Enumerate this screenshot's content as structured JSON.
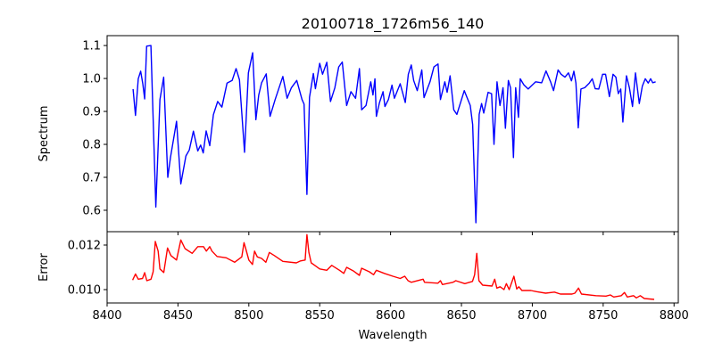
{
  "chart_data": [
    {
      "type": "line",
      "title": "20100718_1726m56_140",
      "xlabel": "",
      "ylabel": "Spectrum",
      "xlim": [
        8400,
        8803
      ],
      "ylim": [
        0.535,
        1.13
      ],
      "xticks": [
        8400,
        8450,
        8500,
        8550,
        8600,
        8650,
        8700,
        8750,
        8800
      ],
      "yticks": [
        0.6,
        0.7,
        0.8,
        0.9,
        1.0,
        1.1
      ],
      "ytick_labels": [
        "0.6",
        "0.7",
        "0.8",
        "0.9",
        "1.0",
        "1.1"
      ],
      "grid": false,
      "color": "#0000ff",
      "series": [
        {
          "name": "Spectrum",
          "points": [
            [
              8418.3,
              0.968
            ],
            [
              8420,
              0.888
            ],
            [
              8422,
              0.999
            ],
            [
              8423.7,
              1.022
            ],
            [
              8425.2,
              0.984
            ],
            [
              8426.5,
              0.938
            ],
            [
              8427.9,
              1.098
            ],
            [
              8430.9,
              1.1
            ],
            [
              8434.4,
              0.61
            ],
            [
              8437.3,
              0.936
            ],
            [
              8439.9,
              1.004
            ],
            [
              8442.8,
              0.7
            ],
            [
              8444.7,
              0.76
            ],
            [
              8449,
              0.87
            ],
            [
              8452,
              0.68
            ],
            [
              8455.6,
              0.765
            ],
            [
              8458,
              0.783
            ],
            [
              8460.9,
              0.84
            ],
            [
              8464,
              0.78
            ],
            [
              8466,
              0.798
            ],
            [
              8467.8,
              0.774
            ],
            [
              8469.9,
              0.841
            ],
            [
              8472.4,
              0.796
            ],
            [
              8475,
              0.89
            ],
            [
              8478,
              0.93
            ],
            [
              8481,
              0.913
            ],
            [
              8484.6,
              0.986
            ],
            [
              8488.2,
              0.994
            ],
            [
              8491,
              1.03
            ],
            [
              8493.4,
              0.996
            ],
            [
              8497,
              0.776
            ],
            [
              8499.7,
              1.017
            ],
            [
              8502.7,
              1.078
            ],
            [
              8505,
              0.875
            ],
            [
              8507,
              0.95
            ],
            [
              8509,
              0.987
            ],
            [
              8512.3,
              1.014
            ],
            [
              8515,
              0.885
            ],
            [
              8518.6,
              0.936
            ],
            [
              8524,
              1.006
            ],
            [
              8527,
              0.94
            ],
            [
              8530,
              0.972
            ],
            [
              8533.8,
              0.994
            ],
            [
              8537.5,
              0.936
            ],
            [
              8539,
              0.922
            ],
            [
              8541,
              0.648
            ],
            [
              8542.8,
              0.943
            ],
            [
              8545.5,
              1.015
            ],
            [
              8547,
              0.969
            ],
            [
              8550,
              1.046
            ],
            [
              8552,
              1.013
            ],
            [
              8555,
              1.049
            ],
            [
              8557.6,
              0.93
            ],
            [
              8560.7,
              0.972
            ],
            [
              8563.4,
              1.035
            ],
            [
              8565.9,
              1.05
            ],
            [
              8569,
              0.918
            ],
            [
              8572,
              0.96
            ],
            [
              8575.3,
              0.94
            ],
            [
              8578,
              1.03
            ],
            [
              8579.6,
              0.905
            ],
            [
              8582.7,
              0.918
            ],
            [
              8586,
              0.99
            ],
            [
              8587.6,
              0.95
            ],
            [
              8589,
              0.999
            ],
            [
              8590,
              0.885
            ],
            [
              8592.2,
              0.927
            ],
            [
              8594.7,
              0.96
            ],
            [
              8596,
              0.915
            ],
            [
              8598.5,
              0.936
            ],
            [
              8601,
              0.98
            ],
            [
              8602.7,
              0.94
            ],
            [
              8606.8,
              0.984
            ],
            [
              8610.4,
              0.927
            ],
            [
              8612.5,
              1.013
            ],
            [
              8614.6,
              1.041
            ],
            [
              8616.3,
              0.994
            ],
            [
              8618.8,
              0.963
            ],
            [
              8622,
              1.026
            ],
            [
              8623.6,
              0.942
            ],
            [
              8627.8,
              0.99
            ],
            [
              8630.6,
              1.035
            ],
            [
              8633.5,
              1.044
            ],
            [
              8635.2,
              0.936
            ],
            [
              8638.3,
              0.99
            ],
            [
              8639.9,
              0.958
            ],
            [
              8642,
              1.008
            ],
            [
              8644.6,
              0.905
            ],
            [
              8646.8,
              0.891
            ],
            [
              8652,
              0.963
            ],
            [
              8656.2,
              0.918
            ],
            [
              8657.9,
              0.86
            ],
            [
              8660.2,
              0.562
            ],
            [
              8662.5,
              0.891
            ],
            [
              8664.2,
              0.924
            ],
            [
              8665.7,
              0.895
            ],
            [
              8668.8,
              0.958
            ],
            [
              8671.3,
              0.954
            ],
            [
              8673,
              0.8
            ],
            [
              8675.1,
              0.99
            ],
            [
              8677.2,
              0.918
            ],
            [
              8679.3,
              0.972
            ],
            [
              8681,
              0.849
            ],
            [
              8683.1,
              0.994
            ],
            [
              8684.6,
              0.972
            ],
            [
              8686.7,
              0.76
            ],
            [
              8688.3,
              0.972
            ],
            [
              8690.2,
              0.882
            ],
            [
              8691.5,
              0.999
            ],
            [
              8694,
              0.981
            ],
            [
              8697.1,
              0.968
            ],
            [
              8702.4,
              0.99
            ],
            [
              8706.6,
              0.987
            ],
            [
              8709.7,
              1.023
            ],
            [
              8712.9,
              0.99
            ],
            [
              8715,
              0.963
            ],
            [
              8718.2,
              1.026
            ],
            [
              8720.3,
              1.013
            ],
            [
              8723,
              1.004
            ],
            [
              8725.5,
              1.017
            ],
            [
              8727.6,
              0.993
            ],
            [
              8729.3,
              1.022
            ],
            [
              8730.8,
              0.986
            ],
            [
              8732.4,
              0.85
            ],
            [
              8734.3,
              0.968
            ],
            [
              8737,
              0.972
            ],
            [
              8740.2,
              0.986
            ],
            [
              8742.3,
              0.999
            ],
            [
              8744.4,
              0.969
            ],
            [
              8746.9,
              0.968
            ],
            [
              8749.6,
              1.013
            ],
            [
              8751.7,
              1.013
            ],
            [
              8754.4,
              0.945
            ],
            [
              8757,
              1.013
            ],
            [
              8759,
              1.004
            ],
            [
              8760.7,
              0.954
            ],
            [
              8762.4,
              0.968
            ],
            [
              8763.9,
              0.868
            ],
            [
              8766.4,
              1.008
            ],
            [
              8768.5,
              0.972
            ],
            [
              8770.7,
              0.915
            ],
            [
              8772.8,
              1.017
            ],
            [
              8775.5,
              0.924
            ],
            [
              8777.6,
              0.977
            ],
            [
              8779.7,
              0.999
            ],
            [
              8781.8,
              0.986
            ],
            [
              8783.5,
              0.999
            ],
            [
              8785,
              0.987
            ],
            [
              8787,
              0.99
            ]
          ]
        }
      ]
    },
    {
      "type": "line",
      "title": "",
      "xlabel": "Wavelength",
      "ylabel": "Error",
      "xlim": [
        8400,
        8803
      ],
      "ylim": [
        0.0094,
        0.0126
      ],
      "xticks": [
        8400,
        8450,
        8500,
        8550,
        8600,
        8650,
        8700,
        8750,
        8800
      ],
      "xtick_labels": [
        "8400",
        "8450",
        "8500",
        "8550",
        "8600",
        "8650",
        "8700",
        "8750",
        "8800"
      ],
      "yticks": [
        0.01,
        0.012
      ],
      "ytick_labels": [
        "0.010",
        "0.012"
      ],
      "grid": false,
      "color": "#ff0000",
      "series": [
        {
          "name": "Error",
          "points": [
            [
              8418,
              0.01043
            ],
            [
              8420,
              0.0107
            ],
            [
              8422,
              0.01047
            ],
            [
              8425,
              0.0105
            ],
            [
              8426.5,
              0.01076
            ],
            [
              8428,
              0.0104
            ],
            [
              8431,
              0.01047
            ],
            [
              8432.5,
              0.0108
            ],
            [
              8434,
              0.01216
            ],
            [
              8436,
              0.01173
            ],
            [
              8437.3,
              0.01093
            ],
            [
              8440,
              0.01077
            ],
            [
              8442.6,
              0.01187
            ],
            [
              8445,
              0.01153
            ],
            [
              8449,
              0.01133
            ],
            [
              8452,
              0.01223
            ],
            [
              8455,
              0.01184
            ],
            [
              8460,
              0.01163
            ],
            [
              8464,
              0.01193
            ],
            [
              8468,
              0.01193
            ],
            [
              8470,
              0.01173
            ],
            [
              8472.4,
              0.01193
            ],
            [
              8474,
              0.01173
            ],
            [
              8477.6,
              0.01149
            ],
            [
              8484,
              0.01143
            ],
            [
              8490,
              0.01123
            ],
            [
              8495,
              0.01147
            ],
            [
              8496.6,
              0.01211
            ],
            [
              8498,
              0.0118
            ],
            [
              8500,
              0.01133
            ],
            [
              8502.6,
              0.01113
            ],
            [
              8504,
              0.01173
            ],
            [
              8506,
              0.01147
            ],
            [
              8509,
              0.0114
            ],
            [
              8512,
              0.01123
            ],
            [
              8514.5,
              0.01167
            ],
            [
              8518,
              0.01153
            ],
            [
              8524,
              0.01127
            ],
            [
              8533.5,
              0.0112
            ],
            [
              8536.5,
              0.01129
            ],
            [
              8539.7,
              0.01133
            ],
            [
              8541,
              0.01247
            ],
            [
              8542.4,
              0.01167
            ],
            [
              8544,
              0.0112
            ],
            [
              8547,
              0.01107
            ],
            [
              8550,
              0.01093
            ],
            [
              8555,
              0.01087
            ],
            [
              8558.5,
              0.01109
            ],
            [
              8564,
              0.01087
            ],
            [
              8567,
              0.01073
            ],
            [
              8569,
              0.011
            ],
            [
              8574,
              0.01083
            ],
            [
              8578,
              0.01064
            ],
            [
              8579.6,
              0.01096
            ],
            [
              8585,
              0.0108
            ],
            [
              8588,
              0.01067
            ],
            [
              8590,
              0.01087
            ],
            [
              8595.6,
              0.01073
            ],
            [
              8601.6,
              0.0106
            ],
            [
              8606.8,
              0.0105
            ],
            [
              8610,
              0.0106
            ],
            [
              8612.3,
              0.0104
            ],
            [
              8614.6,
              0.01033
            ],
            [
              8623,
              0.01047
            ],
            [
              8624,
              0.01033
            ],
            [
              8633.4,
              0.01029
            ],
            [
              8635.2,
              0.0104
            ],
            [
              8636.6,
              0.01023
            ],
            [
              8644,
              0.01033
            ],
            [
              8646,
              0.0104
            ],
            [
              8652.4,
              0.01027
            ],
            [
              8657.8,
              0.01037
            ],
            [
              8659.3,
              0.01067
            ],
            [
              8660.8,
              0.01163
            ],
            [
              8662.3,
              0.0104
            ],
            [
              8665,
              0.0102
            ],
            [
              8671.6,
              0.01016
            ],
            [
              8673.5,
              0.01047
            ],
            [
              8675,
              0.01007
            ],
            [
              8677.3,
              0.01013
            ],
            [
              8680,
              0.01
            ],
            [
              8681.7,
              0.01027
            ],
            [
              8683.7,
              0.01
            ],
            [
              8687,
              0.0106
            ],
            [
              8689,
              0.01003
            ],
            [
              8690.5,
              0.01013
            ],
            [
              8692.7,
              0.00996
            ],
            [
              8699,
              0.00996
            ],
            [
              8703,
              0.00991
            ],
            [
              8709.4,
              0.00984
            ],
            [
              8715.6,
              0.00989
            ],
            [
              8719.8,
              0.0098
            ],
            [
              8728,
              0.0098
            ],
            [
              8730,
              0.00984
            ],
            [
              8732.6,
              0.01007
            ],
            [
              8734.7,
              0.0098
            ],
            [
              8744.8,
              0.00973
            ],
            [
              8752,
              0.00971
            ],
            [
              8755,
              0.00976
            ],
            [
              8757.5,
              0.00967
            ],
            [
              8762.8,
              0.00973
            ],
            [
              8765,
              0.00987
            ],
            [
              8767,
              0.00967
            ],
            [
              8771.4,
              0.00973
            ],
            [
              8773.4,
              0.00963
            ],
            [
              8776.2,
              0.00973
            ],
            [
              8779,
              0.0096
            ],
            [
              8786,
              0.00956
            ]
          ]
        }
      ]
    }
  ]
}
